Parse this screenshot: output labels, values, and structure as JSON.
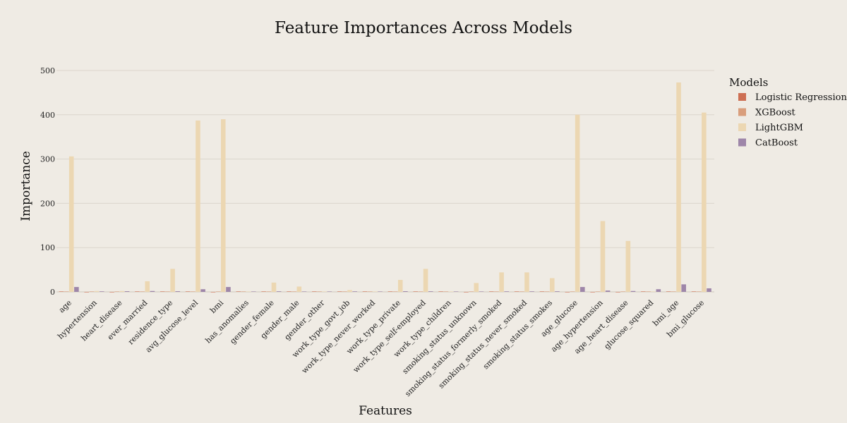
{
  "chart_data": {
    "type": "bar",
    "title": "Feature Importances Across Models",
    "xlabel": "Features",
    "ylabel": "Importance",
    "ylim": [
      -10,
      500
    ],
    "yticks": [
      0,
      100,
      200,
      300,
      400,
      500
    ],
    "grid": true,
    "legend": {
      "title": "Models",
      "placement": "right"
    },
    "categories": [
      "age",
      "hypertension",
      "heart_disease",
      "ever_married",
      "residence_type",
      "avg_glucose_level",
      "bmi",
      "has_anomalies",
      "gender_female",
      "gender_male",
      "gender_other",
      "work_type_govt_job",
      "work_type_never_worked",
      "work_type_private",
      "work_type_self-employed",
      "work_type_children",
      "smoking_status_unknown",
      "smoking_status_formerly_smoked",
      "smoking_status_never_smoked",
      "smoking_status_smokes",
      "age_glucose",
      "age_hypertension",
      "age_heart_disease",
      "glucose_squared",
      "bmi_age",
      "bmi_glucose"
    ],
    "series": [
      {
        "name": "Logistic Regression",
        "color": "#cd6f53",
        "values": [
          0.1,
          -0.5,
          -0.4,
          0.05,
          0.02,
          0.01,
          -0.6,
          0,
          0.03,
          0.01,
          0,
          0.01,
          0,
          0.02,
          0.03,
          0.02,
          -0.5,
          0.02,
          0.01,
          0.01,
          -0.6,
          -0.6,
          -0.6,
          0,
          0.03,
          0.03
        ]
      },
      {
        "name": "XGBoost",
        "color": "#d99e7c",
        "values": [
          0.06,
          0.4,
          0.03,
          0.03,
          0.03,
          0.03,
          0.02,
          0.03,
          0.03,
          0.02,
          0,
          0.02,
          0,
          0.02,
          0.03,
          0.02,
          0.03,
          0.03,
          0.02,
          0.02,
          0.03,
          0.03,
          0.03,
          0.03,
          0.03,
          0.03
        ]
      },
      {
        "name": "LightGBM",
        "color": "#ecd7b2",
        "values": [
          306,
          2,
          2,
          24,
          52,
          387,
          390,
          0,
          21,
          12,
          0,
          4,
          0,
          27,
          52,
          0,
          20,
          44,
          44,
          31,
          400,
          160,
          115,
          0,
          473,
          405
        ]
      },
      {
        "name": "CatBoost",
        "color": "#9e86a9",
        "values": [
          11,
          1.2,
          1.5,
          2,
          1.5,
          6,
          11,
          0.2,
          1.3,
          0.5,
          0,
          1.2,
          0,
          1.5,
          1.3,
          0.2,
          0.8,
          1.2,
          1.2,
          1.3,
          11,
          3,
          2,
          6,
          17,
          8
        ]
      }
    ]
  }
}
